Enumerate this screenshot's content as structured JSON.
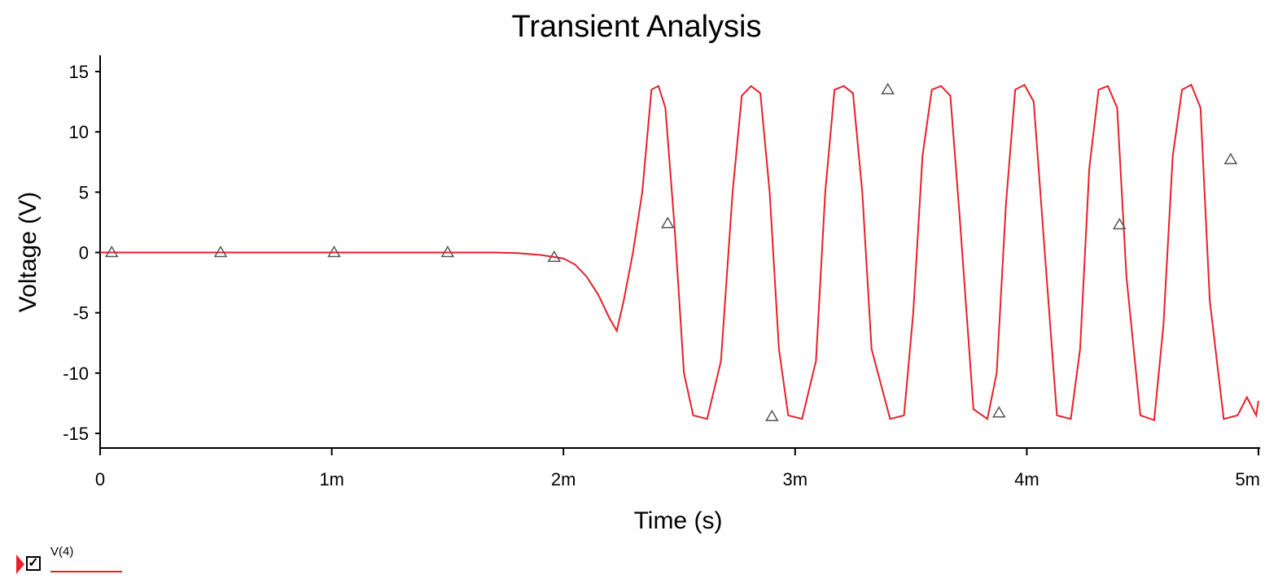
{
  "chart_data": {
    "type": "line",
    "title": "Transient Analysis",
    "xlabel": "Time (s)",
    "ylabel": "Voltage (V)",
    "xlim": [
      0,
      0.005
    ],
    "ylim": [
      -15,
      15
    ],
    "x_ticks": [
      {
        "value": 0,
        "label": "0"
      },
      {
        "value": 0.001,
        "label": "1m"
      },
      {
        "value": 0.002,
        "label": "2m"
      },
      {
        "value": 0.003,
        "label": "3m"
      },
      {
        "value": 0.004,
        "label": "4m"
      },
      {
        "value": 0.005,
        "label": "5m"
      }
    ],
    "y_ticks": [
      {
        "value": 15,
        "label": "15"
      },
      {
        "value": 10,
        "label": "10"
      },
      {
        "value": 5,
        "label": "5"
      },
      {
        "value": 0,
        "label": "0"
      },
      {
        "value": -5,
        "label": "-5"
      },
      {
        "value": -10,
        "label": "-10"
      },
      {
        "value": -15,
        "label": "-15"
      }
    ],
    "grid": false,
    "legend": "bottom-left",
    "series": [
      {
        "name": "V(4)",
        "color": "#e8202a",
        "marker": "triangle",
        "marker_color": "#555555",
        "x": [
          0,
          0.0003,
          0.0006,
          0.0009,
          0.0012,
          0.0015,
          0.0017,
          0.0018,
          0.0019,
          0.002,
          0.00205,
          0.0021,
          0.00215,
          0.0022,
          0.00223,
          0.00226,
          0.0023,
          0.00234,
          0.00238,
          0.00241,
          0.00244,
          0.00248,
          0.00252,
          0.00256,
          0.00262,
          0.00268,
          0.00273,
          0.00277,
          0.00281,
          0.00285,
          0.00289,
          0.00293,
          0.00297,
          0.00303,
          0.00309,
          0.00313,
          0.00317,
          0.00321,
          0.00325,
          0.00329,
          0.00333,
          0.00341,
          0.00347,
          0.00351,
          0.00355,
          0.00359,
          0.00363,
          0.00367,
          0.00371,
          0.00377,
          0.00383,
          0.00387,
          0.00391,
          0.00395,
          0.00399,
          0.00403,
          0.00407,
          0.00413,
          0.00419,
          0.00423,
          0.00427,
          0.00431,
          0.00435,
          0.00439,
          0.00443,
          0.00449,
          0.00455,
          0.00459,
          0.00463,
          0.00467,
          0.00471,
          0.00475,
          0.00479,
          0.00485,
          0.00491,
          0.00495,
          0.00499,
          0.005
        ],
        "y": [
          0,
          0,
          0,
          0,
          0,
          0,
          0,
          -0.05,
          -0.2,
          -0.5,
          -1,
          -2,
          -3.5,
          -5.5,
          -6.5,
          -4,
          0,
          5,
          13.5,
          13.8,
          12,
          2,
          -10,
          -13.5,
          -13.8,
          -9,
          5,
          13,
          13.8,
          13.2,
          5,
          -8,
          -13.5,
          -13.8,
          -9,
          5,
          13.5,
          13.8,
          13.2,
          5,
          -8,
          -13.8,
          -13.5,
          -5,
          8,
          13.5,
          13.8,
          13,
          3,
          -13,
          -13.8,
          -10,
          4,
          13.5,
          13.9,
          12.5,
          2,
          -13.5,
          -13.8,
          -8,
          7,
          13.5,
          13.8,
          12,
          -2,
          -13.5,
          -13.9,
          -6,
          8,
          13.5,
          13.9,
          12,
          -4,
          -13.8,
          -13.5,
          -12,
          -13.5,
          -12.3
        ],
        "markers_x": [
          5e-05,
          0.00052,
          0.00101,
          0.0015,
          0.00196,
          0.00245,
          0.0029,
          0.0034,
          0.00388,
          0.0044,
          0.00488
        ],
        "markers_y": [
          0,
          0,
          0,
          0,
          -0.4,
          2.4,
          -13.6,
          13.5,
          -13.3,
          2.3,
          7.7
        ]
      }
    ]
  }
}
